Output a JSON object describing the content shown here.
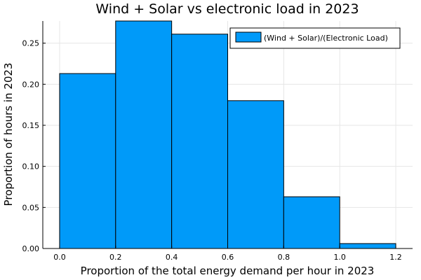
{
  "chart_data": {
    "type": "bar",
    "title": "Wind + Solar vs electronic load in 2023",
    "xlabel": "Proportion of the total energy demand per hour in 2023",
    "ylabel": "Proportion of hours in 2023",
    "bins": [
      {
        "x0": 0.0,
        "x1": 0.2,
        "value": 0.213
      },
      {
        "x0": 0.2,
        "x1": 0.4,
        "value": 0.277
      },
      {
        "x0": 0.4,
        "x1": 0.6,
        "value": 0.261
      },
      {
        "x0": 0.6,
        "x1": 0.8,
        "value": 0.18
      },
      {
        "x0": 0.8,
        "x1": 1.0,
        "value": 0.063
      },
      {
        "x0": 1.0,
        "x1": 1.2,
        "value": 0.006
      }
    ],
    "xlim": [
      -0.06,
      1.26
    ],
    "ylim": [
      0,
      0.277
    ],
    "xticks": [
      0.0,
      0.2,
      0.4,
      0.6,
      0.8,
      1.0,
      1.2
    ],
    "xtick_labels": [
      "0.0",
      "0.2",
      "0.4",
      "0.6",
      "0.8",
      "1.0",
      "1.2"
    ],
    "yticks": [
      0.0,
      0.05,
      0.1,
      0.15,
      0.2,
      0.25
    ],
    "ytick_labels": [
      "0.00",
      "0.05",
      "0.10",
      "0.15",
      "0.20",
      "0.25"
    ],
    "series": [
      {
        "name": "(Wind + Solar)/(Electronic Load)",
        "color": "#009af9"
      }
    ],
    "grid": true,
    "legend_position": "top-right"
  }
}
